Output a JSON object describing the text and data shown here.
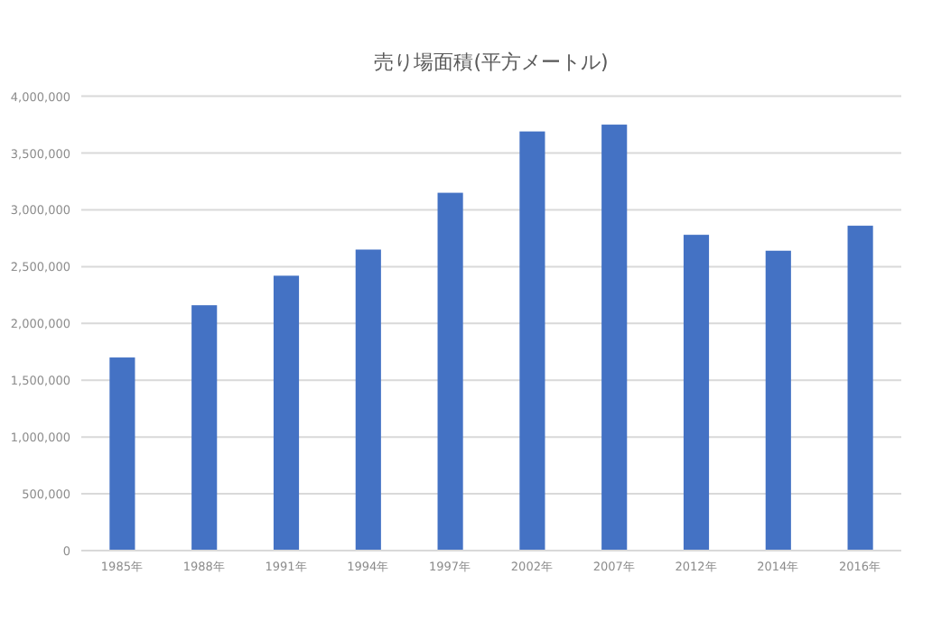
{
  "chart_data": {
    "type": "bar",
    "title": "売り場面積(平方メートル)",
    "categories": [
      "1985年",
      "1988年",
      "1991年",
      "1994年",
      "1997年",
      "2002年",
      "2007年",
      "2012年",
      "2014年",
      "2016年"
    ],
    "values": [
      1700000,
      2160000,
      2420000,
      2650000,
      3150000,
      3690000,
      3750000,
      2780000,
      2640000,
      2860000
    ],
    "color": "#4472c4",
    "ylim": [
      0,
      4000000
    ],
    "yticks": [
      {
        "value": 0,
        "label": "0"
      },
      {
        "value": 500000,
        "label": "500,000"
      },
      {
        "value": 1000000,
        "label": "1,000,000"
      },
      {
        "value": 1500000,
        "label": "1,500,000"
      },
      {
        "value": 2000000,
        "label": "2,000,000"
      },
      {
        "value": 2500000,
        "label": "2,500,000"
      },
      {
        "value": 3000000,
        "label": "3,000,000"
      },
      {
        "value": 3500000,
        "label": "3,500,000"
      },
      {
        "value": 4000000,
        "label": "4,000,000"
      }
    ],
    "grid": "y"
  }
}
